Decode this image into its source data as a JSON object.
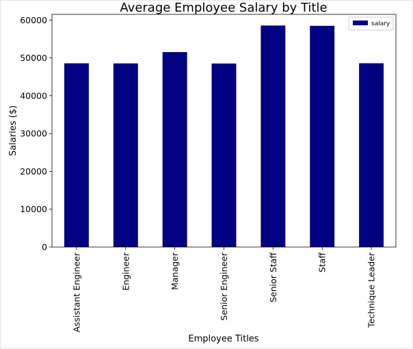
{
  "chart_data": {
    "type": "bar",
    "title": "Average Employee Salary by Title",
    "xlabel": "Employee Titles",
    "ylabel": "Salaries ($)",
    "categories": [
      "Assistant Engineer",
      "Engineer",
      "Manager",
      "Senior Engineer",
      "Senior Staff",
      "Staff",
      "Technique Leader"
    ],
    "series": [
      {
        "name": "salary",
        "values": [
          48560,
          48540,
          51530,
          48510,
          58550,
          58470,
          48580
        ]
      }
    ],
    "ylim": [
      0,
      61500
    ],
    "yticks": [
      0,
      10000,
      20000,
      30000,
      40000,
      50000,
      60000
    ],
    "grid": false,
    "legend": "top-right",
    "colors": {
      "bar": "#000080"
    }
  }
}
